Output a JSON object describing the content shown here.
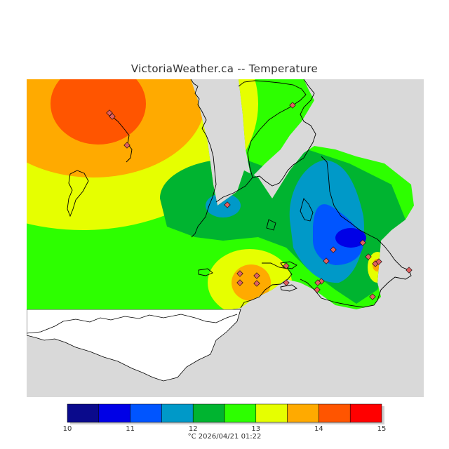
{
  "title": "VictoriaWeather.ca -- Temperature",
  "legend": {
    "ticks": [
      "10",
      "11",
      "12",
      "13",
      "14",
      "15"
    ],
    "caption": "°C  2026/04/21 01:22",
    "colors": [
      "#0a0a8c",
      "#0000e6",
      "#0055ff",
      "#0099c8",
      "#00b430",
      "#2dff00",
      "#e6ff00",
      "#ffaa00",
      "#ff5500",
      "#ff0000"
    ],
    "value_min": 10,
    "value_max": 15
  },
  "colors": {
    "background_land": "#d9d9d9",
    "water_white": "#ffffff",
    "coastline": "#000000",
    "station_marker": "#e06060"
  },
  "stations_count": 22
}
